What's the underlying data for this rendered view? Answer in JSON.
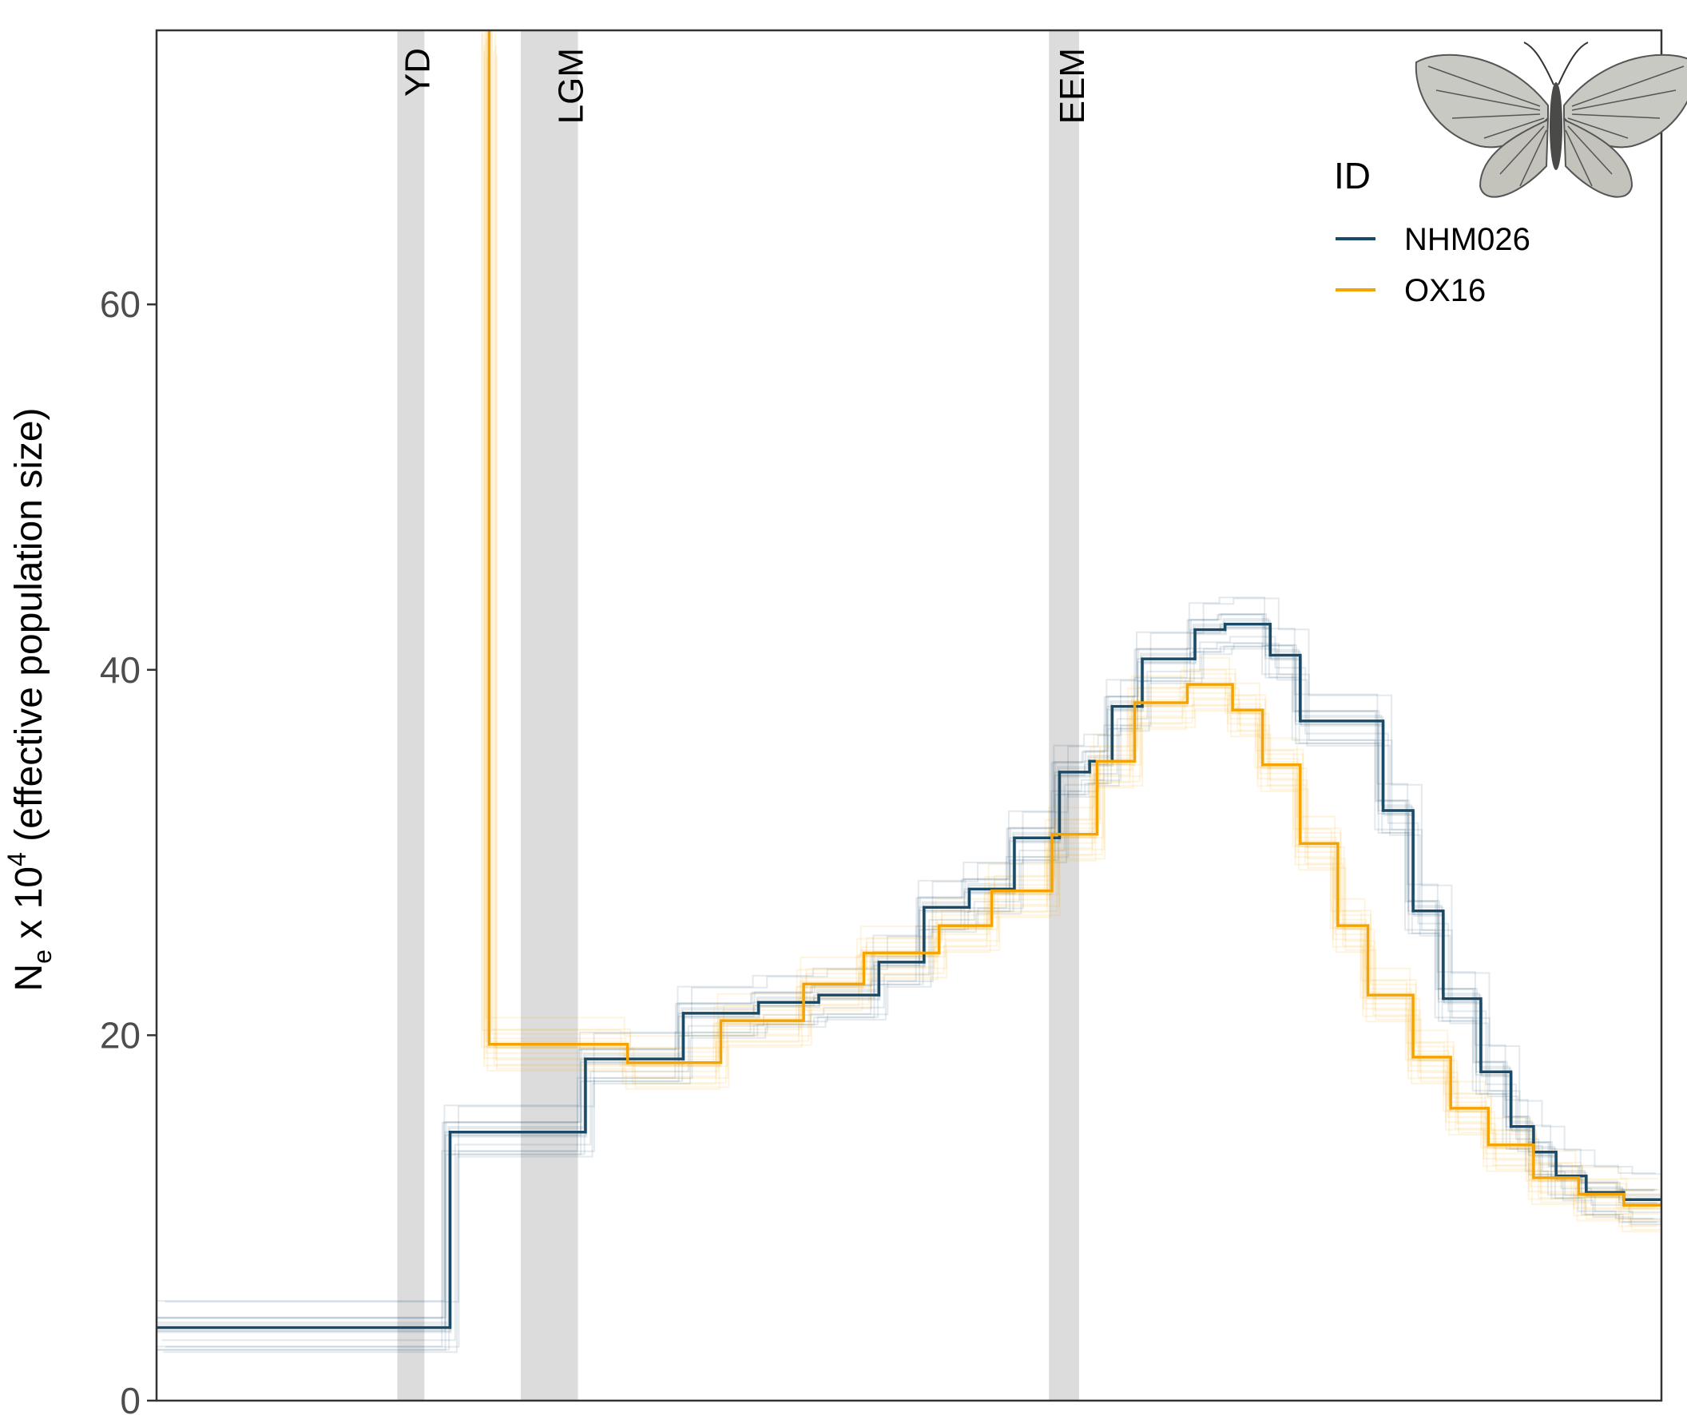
{
  "chart_data": {
    "type": "line",
    "step": true,
    "title": "",
    "xlabel": "",
    "ylabel": {
      "main": "N",
      "main_subscript": "e",
      "middle": " x 10",
      "middle_superscript": "4",
      "suffix": " (effective population size)"
    },
    "ylim": [
      0,
      75
    ],
    "xlim": [
      0,
      100
    ],
    "y_ticks": [
      0,
      20,
      40,
      60
    ],
    "y_tick_labels": [
      "0",
      "20",
      "40",
      "60"
    ],
    "x_ticks_shown": false,
    "grid": false,
    "legend": {
      "title": "ID",
      "placement": "top-right",
      "entries": [
        {
          "label": "NHM026",
          "color": "#1b4a67"
        },
        {
          "label": "OX16",
          "color": "#f5a300"
        }
      ]
    },
    "shaded_periods": [
      {
        "label": "YD",
        "x_start": 16.0,
        "x_end": 17.8
      },
      {
        "label": "LGM",
        "x_start": 24.2,
        "x_end": 28.0
      },
      {
        "label": "EEM",
        "x_start": 59.3,
        "x_end": 61.3
      }
    ],
    "series": [
      {
        "name": "NHM026",
        "color": "#1b4a67",
        "x": [
          0,
          19.5,
          19.5,
          28.5,
          28.5,
          35,
          35,
          40,
          40,
          44,
          44,
          48,
          48,
          51,
          51,
          54,
          54,
          57,
          57,
          60,
          60,
          62,
          62,
          63.5,
          63.5,
          65.5,
          65.5,
          67,
          67,
          69,
          69,
          71,
          71,
          74,
          74,
          76,
          76,
          81.5,
          81.5,
          83.5,
          83.5,
          85.5,
          85.5,
          88,
          88,
          90,
          90,
          91.5,
          91.5,
          93,
          93,
          95,
          95,
          97.5,
          97.5,
          100
        ],
        "y": [
          4,
          4,
          14.7,
          14.7,
          18.7,
          18.7,
          21.2,
          21.2,
          21.8,
          21.8,
          22.2,
          22.2,
          24.0,
          24.0,
          27.0,
          27.0,
          28.0,
          28.0,
          30.8,
          30.8,
          34.4,
          34.4,
          35.0,
          35.0,
          38.0,
          38.0,
          40.6,
          40.6,
          40.6,
          40.6,
          42.2,
          42.2,
          42.5,
          42.5,
          40.8,
          40.8,
          37.2,
          37.2,
          32.3,
          32.3,
          26.8,
          26.8,
          22.0,
          22.0,
          18.0,
          18.0,
          15.0,
          15.0,
          13.6,
          13.6,
          12.3,
          12.3,
          11.4,
          11.4,
          11.0,
          11.0
        ]
      },
      {
        "name": "OX16",
        "color": "#f5a300",
        "x": [
          22.1,
          22.1,
          31.3,
          31.3,
          37.5,
          37.5,
          43,
          43,
          47,
          47,
          52,
          52,
          55.5,
          55.5,
          59.5,
          59.5,
          62.5,
          62.5,
          65,
          65,
          68.5,
          68.5,
          71.5,
          71.5,
          73.5,
          73.5,
          76,
          76,
          78.5,
          78.5,
          80.5,
          80.5,
          83.5,
          83.5,
          86,
          86,
          88.5,
          88.5,
          91.5,
          91.5,
          94.5,
          94.5,
          97.5,
          97.5,
          100
        ],
        "y": [
          75,
          19.5,
          19.5,
          18.5,
          18.5,
          20.8,
          20.8,
          22.8,
          22.8,
          24.5,
          24.5,
          26.0,
          26.0,
          27.9,
          27.9,
          31.0,
          31.0,
          35.0,
          35.0,
          38.2,
          38.2,
          39.2,
          39.2,
          37.8,
          37.8,
          34.8,
          34.8,
          30.5,
          30.5,
          26.0,
          26.0,
          22.2,
          22.2,
          18.8,
          18.8,
          16.0,
          16.0,
          14.0,
          14.0,
          12.2,
          12.2,
          11.3,
          11.3,
          10.7,
          10.7
        ]
      }
    ]
  },
  "image": {
    "name": "butterfly-specimen"
  }
}
